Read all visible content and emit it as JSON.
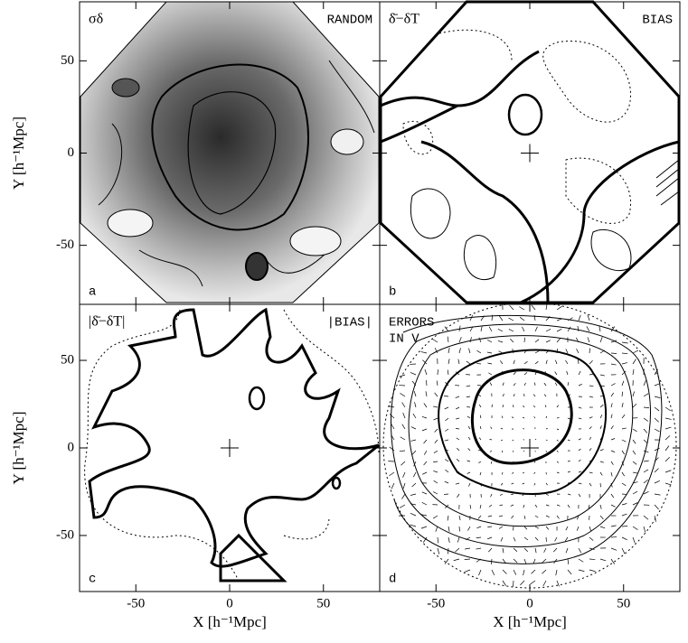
{
  "chart_data": [
    {
      "type": "contour",
      "annotation_left": "σδ",
      "annotation_right": "RANDOM",
      "panel_label": "a",
      "ylabel": "Y [h⁻¹Mpc]",
      "xlim": [
        -80,
        80
      ],
      "ylim": [
        -82,
        82
      ],
      "xticks": [
        -50,
        0,
        50
      ],
      "yticks": [
        -50,
        0,
        50
      ]
    },
    {
      "type": "contour",
      "annotation_left": "δ̄−δT",
      "annotation_right": "BIAS",
      "panel_label": "b",
      "xlim": [
        -80,
        80
      ],
      "ylim": [
        -82,
        82
      ],
      "xticks": [
        -50,
        0,
        50
      ],
      "yticks": [
        -50,
        0,
        50
      ]
    },
    {
      "type": "contour",
      "annotation_left": "|δ̄−δT|",
      "annotation_right": "|BIAS|",
      "panel_label": "c",
      "xlabel": "X [h⁻¹Mpc]",
      "ylabel": "Y [h⁻¹Mpc]",
      "xlim": [
        -80,
        80
      ],
      "ylim": [
        -82,
        82
      ],
      "xticks": [
        -50,
        0,
        50
      ],
      "yticks": [
        -50,
        0,
        50
      ]
    },
    {
      "type": "contour",
      "annotation_left": [
        "ERRORS",
        "IN V"
      ],
      "panel_label": "d",
      "xlabel": "X [h⁻¹Mpc]",
      "xlim": [
        -80,
        80
      ],
      "ylim": [
        -82,
        82
      ],
      "xticks": [
        -50,
        0,
        50
      ],
      "yticks": [
        -50,
        0,
        50
      ]
    }
  ]
}
